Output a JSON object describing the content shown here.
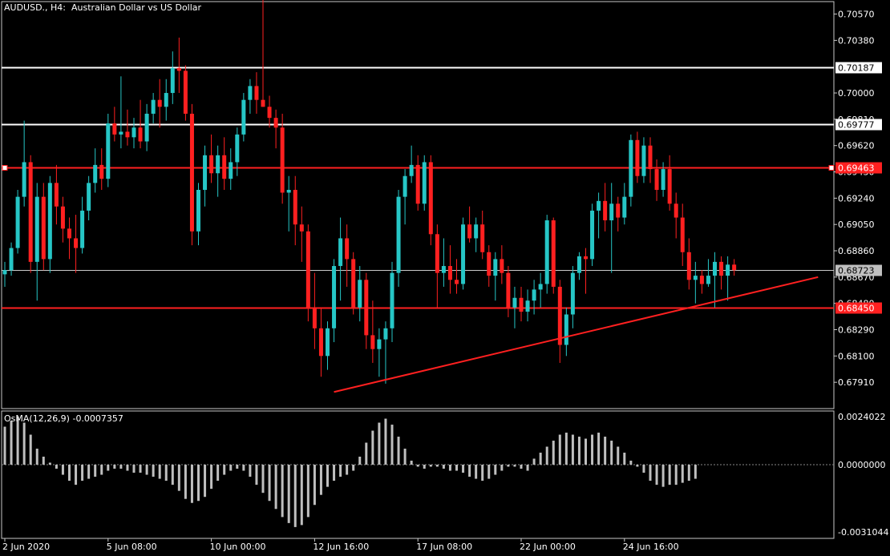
{
  "window": {
    "title": "AUDUSD., H4:  Australian Dollar vs US Dollar"
  },
  "colors": {
    "background": "#000000",
    "bull": "#26c6c6",
    "bear": "#ff2020",
    "grid": "#c8c8c8",
    "hline_white": "#ffffff",
    "hline_red": "#ff2020",
    "osma_bar": "#bfbfbf"
  },
  "price_axis": {
    "ticks": [
      "0.70570",
      "0.70380",
      "0.70000",
      "0.69810",
      "0.69620",
      "0.69430",
      "0.69240",
      "0.69050",
      "0.68860",
      "0.68670",
      "0.68480",
      "0.68290",
      "0.68100",
      "0.67910"
    ],
    "tick_values": [
      0.7057,
      0.7038,
      0.7,
      0.6981,
      0.6962,
      0.6943,
      0.6924,
      0.6905,
      0.6886,
      0.6867,
      0.6848,
      0.6829,
      0.681,
      0.6791
    ],
    "range": [
      0.6772,
      0.7066
    ]
  },
  "level_labels": {
    "upper_white": "0.70187",
    "mid_white": "0.69777",
    "resistance_red": "0.69463",
    "current_price": "0.68723",
    "support_red": "0.68450"
  },
  "level_values": {
    "upper_white": 0.70187,
    "mid_white": 0.69777,
    "resistance_red": 0.69463,
    "current_price": 0.68723,
    "support_red": 0.6845
  },
  "time_axis": {
    "labels": [
      "2 Jun 2020",
      "5 Jun 08:00",
      "10 Jun 00:00",
      "12 Jun 16:00",
      "17 Jun 08:00",
      "22 Jun 00:00",
      "24 Jun 16:00"
    ],
    "label_bar_index": [
      0,
      16,
      32,
      48,
      64,
      80,
      96
    ]
  },
  "trendline": {
    "start_bar": 51,
    "start_price": 0.6784,
    "end_bar": 126,
    "end_price": 0.6867
  },
  "chart_data": {
    "type": "candlestick",
    "symbol": "AUDUSD.",
    "timeframe": "H4",
    "candles": [
      {
        "o": 0.6869,
        "h": 0.6878,
        "l": 0.686,
        "c": 0.6872
      },
      {
        "o": 0.6872,
        "h": 0.6892,
        "l": 0.6868,
        "c": 0.6888
      },
      {
        "o": 0.6888,
        "h": 0.693,
        "l": 0.6884,
        "c": 0.6925
      },
      {
        "o": 0.6925,
        "h": 0.698,
        "l": 0.6918,
        "c": 0.695
      },
      {
        "o": 0.695,
        "h": 0.6955,
        "l": 0.687,
        "c": 0.6878
      },
      {
        "o": 0.6878,
        "h": 0.6935,
        "l": 0.685,
        "c": 0.6925
      },
      {
        "o": 0.6925,
        "h": 0.6935,
        "l": 0.6872,
        "c": 0.688
      },
      {
        "o": 0.688,
        "h": 0.694,
        "l": 0.687,
        "c": 0.6935
      },
      {
        "o": 0.6935,
        "h": 0.6948,
        "l": 0.6905,
        "c": 0.6918
      },
      {
        "o": 0.6918,
        "h": 0.6925,
        "l": 0.6892,
        "c": 0.6902
      },
      {
        "o": 0.6902,
        "h": 0.691,
        "l": 0.688,
        "c": 0.6895
      },
      {
        "o": 0.6895,
        "h": 0.6912,
        "l": 0.687,
        "c": 0.6888
      },
      {
        "o": 0.6888,
        "h": 0.6925,
        "l": 0.6884,
        "c": 0.6915
      },
      {
        "o": 0.6915,
        "h": 0.694,
        "l": 0.6908,
        "c": 0.6935
      },
      {
        "o": 0.6935,
        "h": 0.696,
        "l": 0.6928,
        "c": 0.6948
      },
      {
        "o": 0.6948,
        "h": 0.696,
        "l": 0.693,
        "c": 0.6938
      },
      {
        "o": 0.6938,
        "h": 0.6985,
        "l": 0.6932,
        "c": 0.6978
      },
      {
        "o": 0.6978,
        "h": 0.699,
        "l": 0.6965,
        "c": 0.697
      },
      {
        "o": 0.697,
        "h": 0.7012,
        "l": 0.696,
        "c": 0.6972
      },
      {
        "o": 0.6972,
        "h": 0.6988,
        "l": 0.6962,
        "c": 0.6968
      },
      {
        "o": 0.6968,
        "h": 0.6982,
        "l": 0.696,
        "c": 0.6975
      },
      {
        "o": 0.6975,
        "h": 0.6995,
        "l": 0.696,
        "c": 0.6965
      },
      {
        "o": 0.6965,
        "h": 0.6992,
        "l": 0.6958,
        "c": 0.6985
      },
      {
        "o": 0.6985,
        "h": 0.7,
        "l": 0.6978,
        "c": 0.6995
      },
      {
        "o": 0.6995,
        "h": 0.701,
        "l": 0.6975,
        "c": 0.699
      },
      {
        "o": 0.699,
        "h": 0.701,
        "l": 0.698,
        "c": 0.7
      },
      {
        "o": 0.7,
        "h": 0.703,
        "l": 0.6992,
        "c": 0.7018
      },
      {
        "o": 0.7018,
        "h": 0.704,
        "l": 0.7,
        "c": 0.7016
      },
      {
        "o": 0.7016,
        "h": 0.702,
        "l": 0.698,
        "c": 0.6985
      },
      {
        "o": 0.6985,
        "h": 0.6992,
        "l": 0.689,
        "c": 0.69
      },
      {
        "o": 0.69,
        "h": 0.6935,
        "l": 0.689,
        "c": 0.693
      },
      {
        "o": 0.693,
        "h": 0.6962,
        "l": 0.6918,
        "c": 0.6955
      },
      {
        "o": 0.6955,
        "h": 0.697,
        "l": 0.6935,
        "c": 0.6942
      },
      {
        "o": 0.6942,
        "h": 0.6962,
        "l": 0.6925,
        "c": 0.6955
      },
      {
        "o": 0.6955,
        "h": 0.6968,
        "l": 0.693,
        "c": 0.6938
      },
      {
        "o": 0.6938,
        "h": 0.696,
        "l": 0.693,
        "c": 0.695
      },
      {
        "o": 0.695,
        "h": 0.6975,
        "l": 0.694,
        "c": 0.697
      },
      {
        "o": 0.697,
        "h": 0.7,
        "l": 0.6965,
        "c": 0.6995
      },
      {
        "o": 0.6995,
        "h": 0.701,
        "l": 0.6985,
        "c": 0.7005
      },
      {
        "o": 0.7005,
        "h": 0.7015,
        "l": 0.6985,
        "c": 0.6995
      },
      {
        "o": 0.6995,
        "h": 0.708,
        "l": 0.699,
        "c": 0.699
      },
      {
        "o": 0.699,
        "h": 0.6998,
        "l": 0.6975,
        "c": 0.6982
      },
      {
        "o": 0.6982,
        "h": 0.6988,
        "l": 0.696,
        "c": 0.6975
      },
      {
        "o": 0.6975,
        "h": 0.6985,
        "l": 0.692,
        "c": 0.6928
      },
      {
        "o": 0.6928,
        "h": 0.694,
        "l": 0.69,
        "c": 0.693
      },
      {
        "o": 0.693,
        "h": 0.694,
        "l": 0.689,
        "c": 0.6905
      },
      {
        "o": 0.6905,
        "h": 0.6918,
        "l": 0.6878,
        "c": 0.69
      },
      {
        "o": 0.69,
        "h": 0.6905,
        "l": 0.6835,
        "c": 0.6845
      },
      {
        "o": 0.6845,
        "h": 0.687,
        "l": 0.6815,
        "c": 0.683
      },
      {
        "o": 0.683,
        "h": 0.6845,
        "l": 0.6795,
        "c": 0.681
      },
      {
        "o": 0.681,
        "h": 0.6835,
        "l": 0.68,
        "c": 0.683
      },
      {
        "o": 0.683,
        "h": 0.688,
        "l": 0.682,
        "c": 0.6875
      },
      {
        "o": 0.6875,
        "h": 0.691,
        "l": 0.685,
        "c": 0.6895
      },
      {
        "o": 0.6895,
        "h": 0.6905,
        "l": 0.686,
        "c": 0.688
      },
      {
        "o": 0.688,
        "h": 0.6885,
        "l": 0.684,
        "c": 0.6845
      },
      {
        "o": 0.6845,
        "h": 0.6875,
        "l": 0.6835,
        "c": 0.6865
      },
      {
        "o": 0.6865,
        "h": 0.687,
        "l": 0.6815,
        "c": 0.6825
      },
      {
        "o": 0.6825,
        "h": 0.685,
        "l": 0.6805,
        "c": 0.6815
      },
      {
        "o": 0.6815,
        "h": 0.683,
        "l": 0.6795,
        "c": 0.6822
      },
      {
        "o": 0.6822,
        "h": 0.6835,
        "l": 0.679,
        "c": 0.683
      },
      {
        "o": 0.683,
        "h": 0.6878,
        "l": 0.682,
        "c": 0.687
      },
      {
        "o": 0.687,
        "h": 0.693,
        "l": 0.686,
        "c": 0.6925
      },
      {
        "o": 0.6925,
        "h": 0.6945,
        "l": 0.6905,
        "c": 0.694
      },
      {
        "o": 0.694,
        "h": 0.6962,
        "l": 0.6935,
        "c": 0.6948
      },
      {
        "o": 0.6948,
        "h": 0.6955,
        "l": 0.6915,
        "c": 0.692
      },
      {
        "o": 0.692,
        "h": 0.6955,
        "l": 0.6915,
        "c": 0.695
      },
      {
        "o": 0.695,
        "h": 0.6955,
        "l": 0.689,
        "c": 0.6898
      },
      {
        "o": 0.6898,
        "h": 0.6905,
        "l": 0.6845,
        "c": 0.687
      },
      {
        "o": 0.687,
        "h": 0.6895,
        "l": 0.686,
        "c": 0.6875
      },
      {
        "o": 0.6875,
        "h": 0.689,
        "l": 0.6855,
        "c": 0.6865
      },
      {
        "o": 0.6865,
        "h": 0.688,
        "l": 0.6855,
        "c": 0.6862
      },
      {
        "o": 0.6862,
        "h": 0.691,
        "l": 0.6858,
        "c": 0.6905
      },
      {
        "o": 0.6905,
        "h": 0.6918,
        "l": 0.6892,
        "c": 0.6895
      },
      {
        "o": 0.6895,
        "h": 0.691,
        "l": 0.6885,
        "c": 0.6905
      },
      {
        "o": 0.6905,
        "h": 0.6915,
        "l": 0.688,
        "c": 0.6885
      },
      {
        "o": 0.6885,
        "h": 0.689,
        "l": 0.686,
        "c": 0.6868
      },
      {
        "o": 0.6868,
        "h": 0.6885,
        "l": 0.685,
        "c": 0.688
      },
      {
        "o": 0.688,
        "h": 0.689,
        "l": 0.6862,
        "c": 0.687
      },
      {
        "o": 0.687,
        "h": 0.6875,
        "l": 0.6838,
        "c": 0.6845
      },
      {
        "o": 0.6845,
        "h": 0.686,
        "l": 0.683,
        "c": 0.6852
      },
      {
        "o": 0.6852,
        "h": 0.686,
        "l": 0.6835,
        "c": 0.6842
      },
      {
        "o": 0.6842,
        "h": 0.6858,
        "l": 0.6835,
        "c": 0.685
      },
      {
        "o": 0.685,
        "h": 0.6865,
        "l": 0.684,
        "c": 0.6858
      },
      {
        "o": 0.6858,
        "h": 0.687,
        "l": 0.6845,
        "c": 0.6862
      },
      {
        "o": 0.6862,
        "h": 0.6912,
        "l": 0.6855,
        "c": 0.6908
      },
      {
        "o": 0.6908,
        "h": 0.691,
        "l": 0.6855,
        "c": 0.686
      },
      {
        "o": 0.686,
        "h": 0.6865,
        "l": 0.6805,
        "c": 0.6818
      },
      {
        "o": 0.6818,
        "h": 0.6845,
        "l": 0.681,
        "c": 0.684
      },
      {
        "o": 0.684,
        "h": 0.6875,
        "l": 0.683,
        "c": 0.687
      },
      {
        "o": 0.687,
        "h": 0.6885,
        "l": 0.6865,
        "c": 0.6882
      },
      {
        "o": 0.6882,
        "h": 0.6888,
        "l": 0.6855,
        "c": 0.688
      },
      {
        "o": 0.688,
        "h": 0.692,
        "l": 0.6875,
        "c": 0.6915
      },
      {
        "o": 0.6915,
        "h": 0.6928,
        "l": 0.6895,
        "c": 0.6922
      },
      {
        "o": 0.6922,
        "h": 0.6935,
        "l": 0.69,
        "c": 0.6908
      },
      {
        "o": 0.6908,
        "h": 0.6935,
        "l": 0.687,
        "c": 0.692
      },
      {
        "o": 0.692,
        "h": 0.6925,
        "l": 0.69,
        "c": 0.691
      },
      {
        "o": 0.691,
        "h": 0.6935,
        "l": 0.6905,
        "c": 0.6925
      },
      {
        "o": 0.6925,
        "h": 0.697,
        "l": 0.6918,
        "c": 0.6966
      },
      {
        "o": 0.6966,
        "h": 0.6972,
        "l": 0.6935,
        "c": 0.694
      },
      {
        "o": 0.694,
        "h": 0.6968,
        "l": 0.6935,
        "c": 0.6962
      },
      {
        "o": 0.6962,
        "h": 0.6968,
        "l": 0.6935,
        "c": 0.6945
      },
      {
        "o": 0.6945,
        "h": 0.6952,
        "l": 0.6922,
        "c": 0.693
      },
      {
        "o": 0.693,
        "h": 0.695,
        "l": 0.6925,
        "c": 0.6945
      },
      {
        "o": 0.6945,
        "h": 0.6955,
        "l": 0.6915,
        "c": 0.692
      },
      {
        "o": 0.692,
        "h": 0.6928,
        "l": 0.6895,
        "c": 0.691
      },
      {
        "o": 0.691,
        "h": 0.692,
        "l": 0.6875,
        "c": 0.6885
      },
      {
        "o": 0.6885,
        "h": 0.6895,
        "l": 0.6858,
        "c": 0.6865
      },
      {
        "o": 0.6865,
        "h": 0.6878,
        "l": 0.6848,
        "c": 0.6868
      },
      {
        "o": 0.6868,
        "h": 0.6872,
        "l": 0.6855,
        "c": 0.6862
      },
      {
        "o": 0.6862,
        "h": 0.688,
        "l": 0.686,
        "c": 0.6868
      },
      {
        "o": 0.6868,
        "h": 0.6885,
        "l": 0.6845,
        "c": 0.6878
      },
      {
        "o": 0.6878,
        "h": 0.6882,
        "l": 0.6858,
        "c": 0.6868
      },
      {
        "o": 0.6868,
        "h": 0.6882,
        "l": 0.685,
        "c": 0.6876
      },
      {
        "o": 0.6876,
        "h": 0.688,
        "l": 0.6868,
        "c": 0.6872
      }
    ],
    "osma": {
      "label": "OsMA(12,26,9) -0.0007357",
      "scale_labels": [
        "0.0024022",
        "0.0000000",
        "-0.0031044"
      ],
      "scale_values": [
        0.0024022,
        0.0,
        -0.0031044
      ],
      "values": [
        0.0019,
        0.0022,
        0.0024,
        0.0021,
        0.0015,
        0.0008,
        0.0004,
        0.0001,
        -0.0002,
        -0.0005,
        -0.0008,
        -0.001,
        -0.0008,
        -0.0007,
        -0.0006,
        -0.0005,
        -0.0003,
        -0.0002,
        -0.0002,
        -0.0003,
        -0.0004,
        -0.0004,
        -0.0005,
        -0.0006,
        -0.0007,
        -0.0008,
        -0.001,
        -0.0013,
        -0.0017,
        -0.0019,
        -0.0018,
        -0.0016,
        -0.0012,
        -0.0008,
        -0.0005,
        -0.0003,
        -0.0002,
        -0.0003,
        -0.0006,
        -0.001,
        -0.0014,
        -0.0018,
        -0.0022,
        -0.0026,
        -0.0029,
        -0.0031,
        -0.003,
        -0.0026,
        -0.002,
        -0.0015,
        -0.0011,
        -0.0008,
        -0.0006,
        -0.0005,
        -0.0003,
        0.0004,
        0.0011,
        0.0017,
        0.0021,
        0.0023,
        0.002,
        0.0014,
        0.0008,
        0.0002,
        -0.0001,
        -0.0002,
        -0.0001,
        -0.0001,
        -0.0002,
        -0.0003,
        -0.0003,
        -0.0004,
        -0.0006,
        -0.0007,
        -0.0008,
        -0.0007,
        -0.0005,
        -0.0003,
        -0.0001,
        -0.0001,
        -0.0002,
        -0.0003,
        0.0003,
        0.0006,
        0.0009,
        0.0012,
        0.0015,
        0.0016,
        0.0015,
        0.0014,
        0.0013,
        0.0015,
        0.0016,
        0.0014,
        0.0012,
        0.0009,
        0.0006,
        0.0002,
        -0.0001,
        -0.0004,
        -0.0008,
        -0.001,
        -0.0011,
        -0.001,
        -0.001,
        -0.0009,
        -0.0008,
        -0.0007
      ]
    }
  }
}
